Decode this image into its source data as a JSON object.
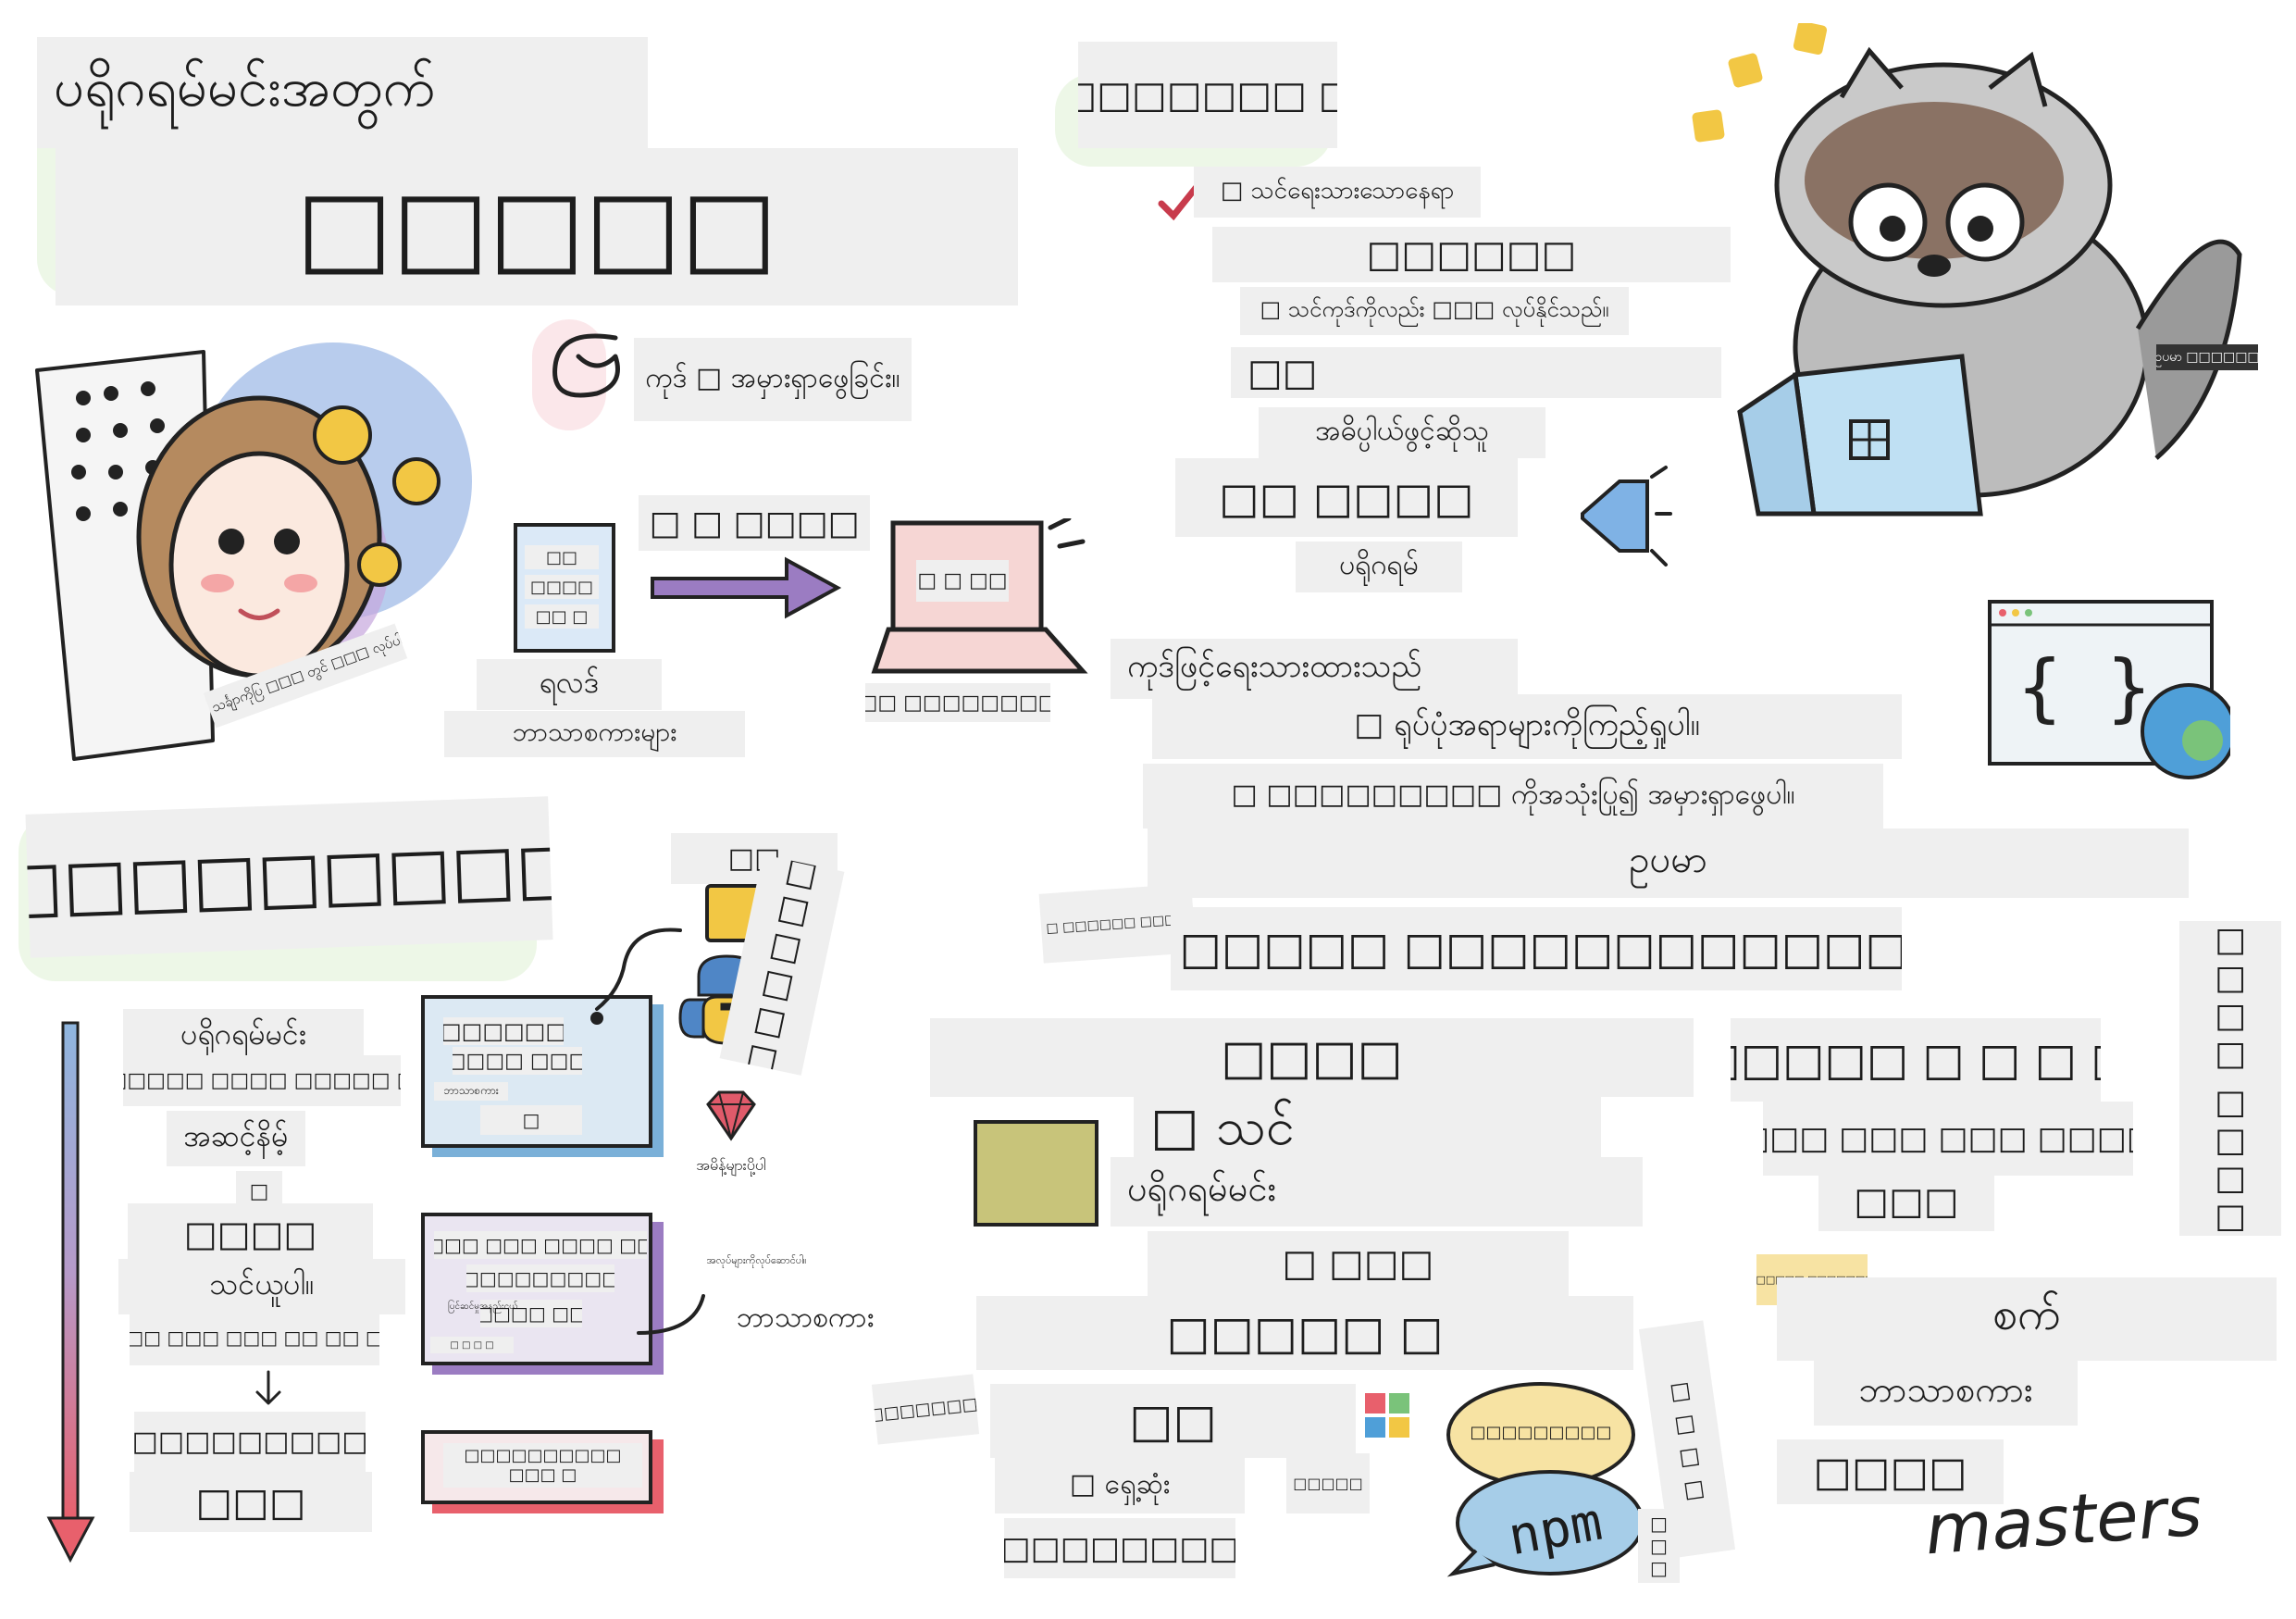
{
  "left": {
    "title_line1": "ပရိုဂရမ်မင်းအတွက်",
    "title_line2": "□□□□□",
    "code_bug_text": "ကုဒ် □ အမှားရှာဖွေခြင်း။",
    "ada_caption": "| သင်္ချာကိုပြ □□□ တွင် □□□ လုပ်ပါ။",
    "file_text": [
      "□□",
      "□□□□",
      "□□ □"
    ],
    "arrow_label": "□ □ □□□□",
    "screen_text": "□ □ □□",
    "source_label": "ရလဒ်",
    "languages_label": "ဘာသာစကားများ",
    "computer_label": "□□□ □□□□□□□□□"
  },
  "bottom_left": {
    "heading": "□□□□□□□□□□□",
    "steps": [
      "ပရိုဂရမ်မင်း",
      "□□□□□□ □□□□ □□□□□ □□",
      "အဆင့်နိမ့်",
      "□",
      "□□□□",
      "သင်ယူပါ။",
      "□□□□ □□□ □□□ □□ □□ □□□",
      "□□□□□□□□□□□",
      "□□□"
    ],
    "card1": [
      "□□□□□□",
      "□□□□ □□□",
      "ဘာသာစကား",
      "□"
    ],
    "card2": [
      "□□□ □□□ □□□□ □□",
      "□□□□□□□□□",
      "□ □ □ □",
      "□□□□□ □□□"
    ],
    "card2_small": "ပြင်ဆင်မှုအနည်းငယ်",
    "card3": "□□□□□□□□□□ □□□ □",
    "langs_top": "□□",
    "langs_vertical": "□□□□□□",
    "ruby_label": "အမိန့်များပို့ပါ",
    "card2_note": "အလုပ်များကိုလုပ်ဆောင်ပါ။",
    "language_label": "ဘာသာစကား"
  },
  "right": {
    "title": "□□□□□□□□ □□",
    "sub_check": "□ သင်ရေးသားသောနေရာ",
    "editor_label": "□□□□□□",
    "editor_sub": "□ သင်ကုဒ်ကိုလည်း □□□ လုပ်နိုင်သည်။",
    "item1": "□□",
    "item1_sub": "အဓိပ္ပါယ်ဖွင့်ဆိုသူ",
    "item2": "□□ □□□□",
    "item2_sub": "ပရိုဂရမ်",
    "raccoon_tag": "ဥပမာ □□□□□□",
    "written_code": "ကုဒ်ဖြင့်ရေးသားထားသည်",
    "see_errors": "□ ရုပ်ပုံအရာများကိုကြည့်ရှုပါ။",
    "use_debug": "□ □□□□□□□□□ ကိုအသုံးပြု၍ အမှားရှာဖွေပါ။",
    "example": "ဥပမာ",
    "side_note": "□ □□□□□□ □□□□",
    "big_line": "□ □□□□□ □□□□□□□□□□□□□",
    "col_a_head": "□□□□",
    "col_a_line1": "□ သင်",
    "col_a_line2": "ပရိုဂရမ်မင်း",
    "col_a_line3": "□ □□□",
    "col_a_line4": "□□□□□ □",
    "col_a_line5": "□□",
    "col_a_line6": "□ ရှေ့ဆုံး",
    "col_a_line7": "□□□□□□□□",
    "col_a_small": "□□□□□",
    "left_note": "□□□□□□□,",
    "bubble": "□□□□□□□□□",
    "npm": "npm",
    "vert_small": "□ □ □ □",
    "vert_tiny": "□□□",
    "col_b_head": "□□□□□ □ □ □ □",
    "col_b_line1": "□□□ □□□ □□□ □□□□",
    "col_b_line2": "□□□",
    "col_b_small": "| □□□□□□ □□□□□□□□",
    "col_b_line3": "စက်",
    "col_b_line4": "ဘာသာစကား",
    "col_b_line5": "□□□□",
    "vertical_right": "□□□□□□ □□□□□□",
    "masters": "masters"
  },
  "colors": {
    "label_bg": "#efefef",
    "arrow_purple": "#9b7cc2",
    "laptop_pink": "#f6d6d4",
    "timeline_top": "#8fb6df",
    "timeline_bottom": "#e8606c",
    "python_yellow": "#f2c744",
    "python_blue": "#4f86c6",
    "ruby_red": "#e05a6a",
    "raccoon_gray": "#bcbcbc"
  }
}
